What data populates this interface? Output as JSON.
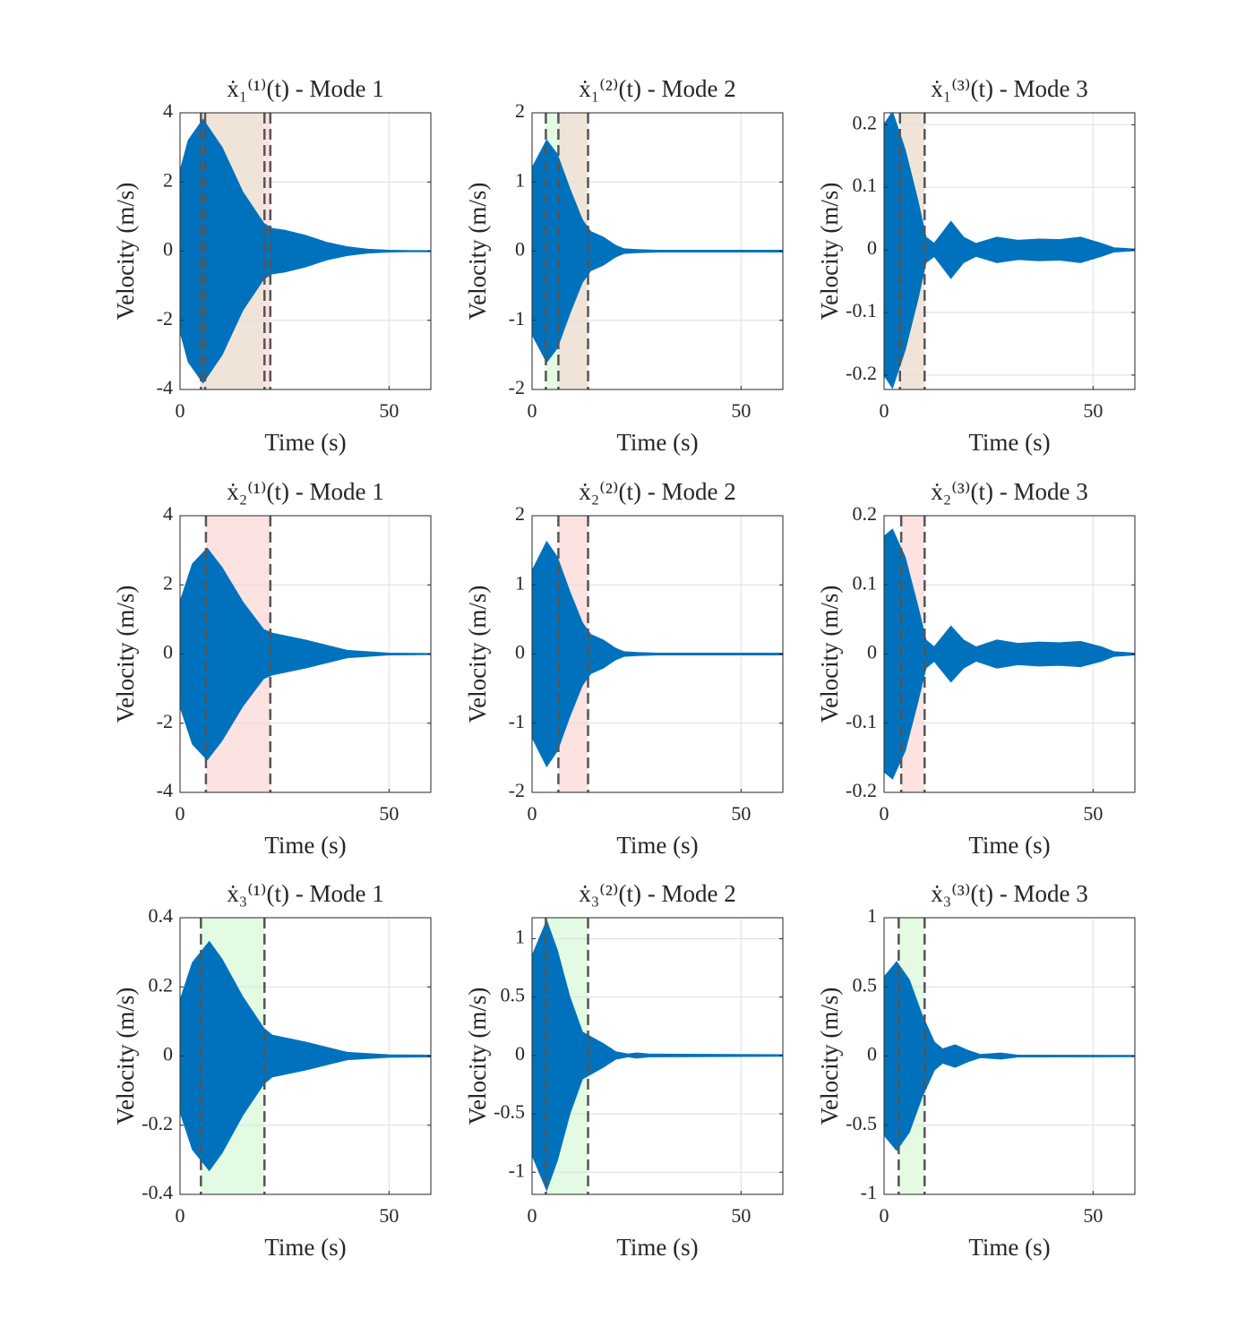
{
  "chart_data": [
    {
      "type": "envelope",
      "title": "ẋ₁⁽¹⁾(t) - Mode 1",
      "xlabel": "Time (s)",
      "ylabel": "Velocity (m/s)",
      "xlim": [
        0,
        60
      ],
      "xticks": [
        0,
        50
      ],
      "ylim": [
        -4,
        4
      ],
      "yticks": [
        -4,
        -2,
        0,
        2,
        4
      ],
      "grid": true,
      "vline_color": "#555555",
      "x": [
        0,
        2,
        5.5,
        10,
        15,
        20,
        22,
        25,
        30,
        35,
        40,
        45,
        50,
        55,
        60
      ],
      "series": [
        {
          "color": "#0072bd",
          "values": [
            2.3,
            3.2,
            3.8,
            3.0,
            1.7,
            0.8,
            0.65,
            0.6,
            0.45,
            0.25,
            0.12,
            0.05,
            0.02,
            0.01,
            0.01
          ]
        },
        {
          "color": "#0072bd",
          "values": [
            -2.3,
            -3.2,
            -3.8,
            -3.0,
            -1.7,
            -0.8,
            -0.65,
            -0.6,
            -0.45,
            -0.25,
            -0.12,
            -0.05,
            -0.02,
            -0.01,
            -0.01
          ]
        }
      ],
      "spans": [
        {
          "start": 4.8,
          "end": 20.2,
          "color": "#f0e4d8"
        },
        {
          "start": 20.2,
          "end": 21.6,
          "color": "#fde2e2"
        }
      ],
      "vlines": [
        5,
        6,
        20.2,
        21.6
      ]
    },
    {
      "type": "envelope",
      "title": "ẋ₁⁽²⁾(t) - Mode 2",
      "xlabel": "Time (s)",
      "ylabel": "Velocity (m/s)",
      "xlim": [
        0,
        60
      ],
      "xticks": [
        0,
        50
      ],
      "ylim": [
        -2,
        2
      ],
      "yticks": [
        -2,
        -1,
        0,
        1,
        2
      ],
      "grid": true,
      "vline_color": "#555555",
      "x": [
        0,
        3.5,
        6,
        9,
        12,
        14,
        17,
        20,
        22,
        25,
        30,
        60
      ],
      "series": [
        {
          "color": "#0072bd",
          "values": [
            1.2,
            1.6,
            1.4,
            0.9,
            0.45,
            0.28,
            0.2,
            0.08,
            0.03,
            0.02,
            0.01,
            0.01
          ]
        },
        {
          "color": "#0072bd",
          "values": [
            -1.2,
            -1.6,
            -1.4,
            -0.9,
            -0.45,
            -0.28,
            -0.2,
            -0.08,
            -0.03,
            -0.02,
            -0.01,
            -0.01
          ]
        }
      ],
      "spans": [
        {
          "start": 3.3,
          "end": 6.3,
          "color": "#e2fbe2"
        },
        {
          "start": 6.3,
          "end": 13.4,
          "color": "#f0e4d8"
        }
      ],
      "vlines": [
        3.3,
        6.3,
        13.4
      ]
    },
    {
      "type": "envelope",
      "title": "ẋ₁⁽³⁾(t) - Mode 3",
      "xlabel": "Time (s)",
      "ylabel": "Velocity (m/s)",
      "xlim": [
        0,
        60
      ],
      "xticks": [
        0,
        50
      ],
      "ylim": [
        -0.223,
        0.219
      ],
      "yticks": [
        -0.2,
        -0.1,
        0,
        0.1,
        0.2
      ],
      "grid": true,
      "vline_color": "#555555",
      "x": [
        0,
        2,
        5,
        8,
        10,
        12,
        16,
        19,
        22,
        27,
        32,
        37,
        42,
        47,
        52,
        55,
        60
      ],
      "series": [
        {
          "color": "#0072bd",
          "values": [
            0.2,
            0.22,
            0.16,
            0.08,
            0.02,
            0.01,
            0.045,
            0.02,
            0.01,
            0.02,
            0.015,
            0.017,
            0.016,
            0.02,
            0.01,
            0.003,
            0.001
          ]
        },
        {
          "color": "#0072bd",
          "values": [
            -0.2,
            -0.22,
            -0.16,
            -0.08,
            -0.02,
            -0.01,
            -0.045,
            -0.02,
            -0.01,
            -0.02,
            -0.015,
            -0.017,
            -0.016,
            -0.02,
            -0.01,
            -0.003,
            -0.001
          ]
        }
      ],
      "spans": [
        {
          "start": 3.8,
          "end": 9.7,
          "color": "#f0e4d8"
        }
      ],
      "vlines": [
        3.8,
        9.7
      ]
    },
    {
      "type": "envelope",
      "title": "ẋ₂⁽¹⁾(t) - Mode 1",
      "xlabel": "Time (s)",
      "ylabel": "Velocity (m/s)",
      "xlim": [
        0,
        60
      ],
      "xticks": [
        0,
        50
      ],
      "ylim": [
        -4,
        4
      ],
      "yticks": [
        -4,
        -2,
        0,
        2,
        4
      ],
      "grid": true,
      "vline_color": "#555555",
      "x": [
        0,
        3,
        6.5,
        10,
        15,
        20,
        22,
        30,
        40,
        50,
        60
      ],
      "series": [
        {
          "color": "#0072bd",
          "values": [
            1.5,
            2.6,
            3.05,
            2.5,
            1.5,
            0.7,
            0.6,
            0.4,
            0.1,
            0.02,
            0.01
          ]
        },
        {
          "color": "#0072bd",
          "values": [
            -1.5,
            -2.6,
            -3.05,
            -2.5,
            -1.5,
            -0.7,
            -0.6,
            -0.4,
            -0.1,
            -0.02,
            -0.01
          ]
        }
      ],
      "spans": [
        {
          "start": 6.2,
          "end": 21.6,
          "color": "#fde2e2"
        }
      ],
      "vlines": [
        6.2,
        21.6
      ]
    },
    {
      "type": "envelope",
      "title": "ẋ₂⁽²⁾(t) - Mode 2",
      "xlabel": "Time (s)",
      "ylabel": "Velocity (m/s)",
      "xlim": [
        0,
        60
      ],
      "xticks": [
        0,
        50
      ],
      "ylim": [
        -2,
        2
      ],
      "yticks": [
        -2,
        -1,
        0,
        1,
        2
      ],
      "grid": true,
      "vline_color": "#555555",
      "x": [
        0,
        3.5,
        6,
        9,
        12,
        14,
        17,
        20,
        22,
        25,
        30,
        60
      ],
      "series": [
        {
          "color": "#0072bd",
          "values": [
            1.2,
            1.62,
            1.4,
            0.9,
            0.45,
            0.28,
            0.2,
            0.08,
            0.03,
            0.02,
            0.01,
            0.01
          ]
        },
        {
          "color": "#0072bd",
          "values": [
            -1.2,
            -1.62,
            -1.4,
            -0.9,
            -0.45,
            -0.28,
            -0.2,
            -0.08,
            -0.03,
            -0.02,
            -0.01,
            -0.01
          ]
        }
      ],
      "spans": [
        {
          "start": 6.3,
          "end": 13.4,
          "color": "#fde2e2"
        }
      ],
      "vlines": [
        6.3,
        13.4
      ]
    },
    {
      "type": "envelope",
      "title": "ẋ₂⁽³⁾(t) - Mode 3",
      "xlabel": "Time (s)",
      "ylabel": "Velocity (m/s)",
      "xlim": [
        0,
        60
      ],
      "xticks": [
        0,
        50
      ],
      "ylim": [
        -0.2,
        0.2
      ],
      "yticks": [
        -0.2,
        -0.1,
        0,
        0.1,
        0.2
      ],
      "grid": true,
      "vline_color": "#555555",
      "x": [
        0,
        2,
        5,
        8,
        10,
        12,
        16,
        19,
        22,
        27,
        32,
        37,
        42,
        47,
        52,
        55,
        60
      ],
      "series": [
        {
          "color": "#0072bd",
          "values": [
            0.17,
            0.18,
            0.14,
            0.07,
            0.02,
            0.01,
            0.04,
            0.02,
            0.01,
            0.02,
            0.015,
            0.017,
            0.016,
            0.018,
            0.01,
            0.003,
            0.001
          ]
        },
        {
          "color": "#0072bd",
          "values": [
            -0.17,
            -0.18,
            -0.14,
            -0.07,
            -0.02,
            -0.01,
            -0.04,
            -0.02,
            -0.01,
            -0.02,
            -0.015,
            -0.017,
            -0.016,
            -0.018,
            -0.01,
            -0.003,
            -0.001
          ]
        }
      ],
      "spans": [
        {
          "start": 4.1,
          "end": 9.7,
          "color": "#fde2e2"
        }
      ],
      "vlines": [
        4.1,
        9.7
      ]
    },
    {
      "type": "envelope",
      "title": "ẋ₃⁽¹⁾(t) - Mode 1",
      "xlabel": "Time (s)",
      "ylabel": "Velocity (m/s)",
      "xlim": [
        0,
        60
      ],
      "xticks": [
        0,
        50
      ],
      "ylim": [
        -0.4,
        0.4
      ],
      "yticks": [
        -0.4,
        -0.2,
        0,
        0.2,
        0.4
      ],
      "grid": true,
      "vline_color": "#555555",
      "x": [
        0,
        3,
        7,
        10,
        15,
        20,
        22,
        30,
        40,
        50,
        60
      ],
      "series": [
        {
          "color": "#0072bd",
          "values": [
            0.16,
            0.27,
            0.33,
            0.28,
            0.17,
            0.08,
            0.06,
            0.04,
            0.01,
            0.003,
            0.002
          ]
        },
        {
          "color": "#0072bd",
          "values": [
            -0.16,
            -0.27,
            -0.33,
            -0.28,
            -0.17,
            -0.08,
            -0.06,
            -0.04,
            -0.01,
            -0.003,
            -0.002
          ]
        }
      ],
      "spans": [
        {
          "start": 5,
          "end": 20.2,
          "color": "#e2fbe2"
        }
      ],
      "vlines": [
        5,
        20.2
      ]
    },
    {
      "type": "envelope",
      "title": "ẋ₃⁽²⁾(t) - Mode 2",
      "xlabel": "Time (s)",
      "ylabel": "Velocity (m/s)",
      "xlim": [
        0,
        60
      ],
      "xticks": [
        0,
        50
      ],
      "ylim": [
        -1.19,
        1.18
      ],
      "yticks": [
        -1,
        -0.5,
        0,
        0.5,
        1
      ],
      "grid": true,
      "vline_color": "#555555",
      "x": [
        0,
        3.5,
        6,
        9,
        12,
        14,
        17,
        20,
        23,
        25,
        28,
        60
      ],
      "series": [
        {
          "color": "#0072bd",
          "values": [
            0.85,
            1.15,
            0.9,
            0.5,
            0.2,
            0.16,
            0.1,
            0.03,
            0.01,
            0.02,
            0.01,
            0.005
          ]
        },
        {
          "color": "#0072bd",
          "values": [
            -0.85,
            -1.15,
            -0.9,
            -0.5,
            -0.2,
            -0.16,
            -0.1,
            -0.03,
            -0.01,
            -0.02,
            -0.01,
            -0.005
          ]
        }
      ],
      "spans": [
        {
          "start": 3.3,
          "end": 13.4,
          "color": "#e2fbe2"
        }
      ],
      "vlines": [
        3.3,
        13.4
      ]
    },
    {
      "type": "envelope",
      "title": "ẋ₃⁽³⁾(t) - Mode 3",
      "xlabel": "Time (s)",
      "ylabel": "Velocity (m/s)",
      "xlim": [
        0,
        60
      ],
      "xticks": [
        0,
        50
      ],
      "ylim": [
        -1,
        1
      ],
      "yticks": [
        -1,
        -0.5,
        0,
        0.5,
        1
      ],
      "grid": true,
      "vline_color": "#555555",
      "x": [
        0,
        3,
        6,
        9,
        12,
        14,
        17,
        20,
        23,
        28,
        32,
        60
      ],
      "series": [
        {
          "color": "#0072bd",
          "values": [
            0.57,
            0.68,
            0.55,
            0.3,
            0.1,
            0.05,
            0.08,
            0.04,
            0.01,
            0.02,
            0.005,
            0.003
          ]
        },
        {
          "color": "#0072bd",
          "values": [
            -0.57,
            -0.68,
            -0.55,
            -0.3,
            -0.1,
            -0.05,
            -0.08,
            -0.04,
            -0.01,
            -0.02,
            -0.005,
            -0.003
          ]
        }
      ],
      "spans": [
        {
          "start": 3.5,
          "end": 9.7,
          "color": "#e2fbe2"
        }
      ],
      "vlines": [
        3.5,
        9.7
      ]
    }
  ]
}
